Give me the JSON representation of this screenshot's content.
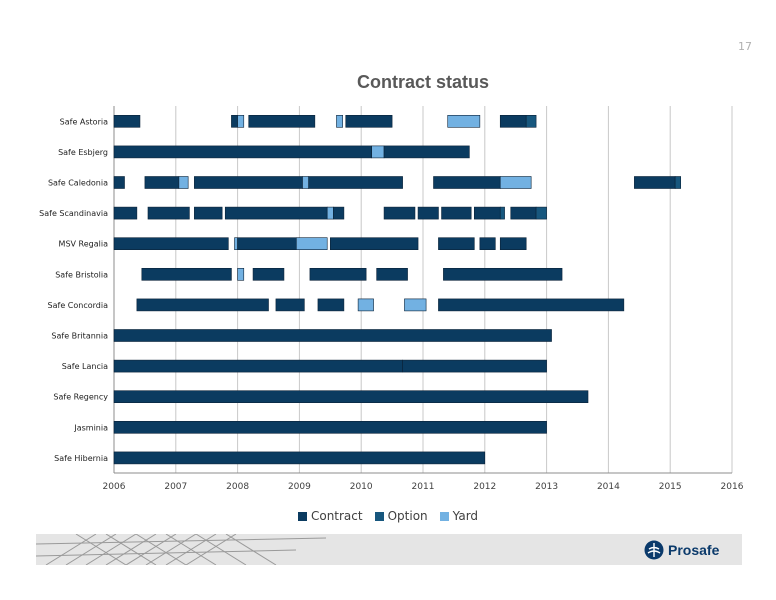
{
  "page": {
    "number": "17"
  },
  "brand": {
    "name": "Prosafe"
  },
  "chart_data": {
    "type": "bar",
    "orientation": "horizontal-timeline",
    "title": "Contract status",
    "xlabel": "",
    "ylabel": "",
    "xlim": [
      2006,
      2016
    ],
    "x_ticks": [
      "2006",
      "2007",
      "2008",
      "2009",
      "2010",
      "2011",
      "2012",
      "2013",
      "2014",
      "2015",
      "2016"
    ],
    "grid": true,
    "legend_position": "bottom",
    "colors": {
      "Contract": "#0b3b60",
      "Option": "#17577e",
      "Yard": "#72b1e2"
    },
    "legend": [
      "Contract",
      "Option",
      "Yard"
    ],
    "categories": [
      "Safe Astoria",
      "Safe Esbjerg",
      "Safe Caledonia",
      "Safe Scandinavia",
      "MSV Regalia",
      "Safe Bristolia",
      "Safe Concordia",
      "Safe Britannia",
      "Safe Lancia",
      "Safe Regency",
      "Jasminia",
      "Safe Hibernia"
    ],
    "rows": [
      {
        "name": "Safe Astoria",
        "segments": [
          {
            "start": 2006.0,
            "end": 2006.42,
            "type": "Contract"
          },
          {
            "start": 2007.9,
            "end": 2008.0,
            "type": "Contract"
          },
          {
            "start": 2008.0,
            "end": 2008.1,
            "type": "Yard"
          },
          {
            "start": 2008.18,
            "end": 2009.25,
            "type": "Contract"
          },
          {
            "start": 2009.6,
            "end": 2009.7,
            "type": "Yard"
          },
          {
            "start": 2009.75,
            "end": 2010.5,
            "type": "Contract"
          },
          {
            "start": 2011.4,
            "end": 2011.92,
            "type": "Yard"
          },
          {
            "start": 2012.25,
            "end": 2012.67,
            "type": "Contract"
          },
          {
            "start": 2012.67,
            "end": 2012.83,
            "type": "Option"
          }
        ]
      },
      {
        "name": "Safe Esbjerg",
        "segments": [
          {
            "start": 2006.0,
            "end": 2010.17,
            "type": "Contract"
          },
          {
            "start": 2010.17,
            "end": 2010.37,
            "type": "Yard"
          },
          {
            "start": 2010.37,
            "end": 2011.75,
            "type": "Contract"
          }
        ]
      },
      {
        "name": "Safe Caledonia",
        "segments": [
          {
            "start": 2006.0,
            "end": 2006.17,
            "type": "Contract"
          },
          {
            "start": 2006.5,
            "end": 2007.05,
            "type": "Contract"
          },
          {
            "start": 2007.05,
            "end": 2007.2,
            "type": "Yard"
          },
          {
            "start": 2007.3,
            "end": 2009.05,
            "type": "Contract"
          },
          {
            "start": 2009.05,
            "end": 2009.15,
            "type": "Yard"
          },
          {
            "start": 2009.15,
            "end": 2010.67,
            "type": "Contract"
          },
          {
            "start": 2011.17,
            "end": 2012.25,
            "type": "Contract"
          },
          {
            "start": 2012.25,
            "end": 2012.75,
            "type": "Yard"
          },
          {
            "start": 2014.42,
            "end": 2015.08,
            "type": "Contract"
          },
          {
            "start": 2015.08,
            "end": 2015.17,
            "type": "Option"
          }
        ]
      },
      {
        "name": "Safe Scandinavia",
        "segments": [
          {
            "start": 2006.0,
            "end": 2006.37,
            "type": "Contract"
          },
          {
            "start": 2006.55,
            "end": 2007.22,
            "type": "Contract"
          },
          {
            "start": 2007.3,
            "end": 2007.75,
            "type": "Contract"
          },
          {
            "start": 2007.8,
            "end": 2009.45,
            "type": "Contract"
          },
          {
            "start": 2009.45,
            "end": 2009.55,
            "type": "Yard"
          },
          {
            "start": 2009.55,
            "end": 2009.72,
            "type": "Contract"
          },
          {
            "start": 2010.37,
            "end": 2010.87,
            "type": "Contract"
          },
          {
            "start": 2010.92,
            "end": 2011.25,
            "type": "Contract"
          },
          {
            "start": 2011.3,
            "end": 2011.78,
            "type": "Contract"
          },
          {
            "start": 2011.83,
            "end": 2012.25,
            "type": "Contract"
          },
          {
            "start": 2012.25,
            "end": 2012.32,
            "type": "Option"
          },
          {
            "start": 2012.42,
            "end": 2012.83,
            "type": "Contract"
          },
          {
            "start": 2012.83,
            "end": 2013.0,
            "type": "Option"
          }
        ]
      },
      {
        "name": "MSV Regalia",
        "segments": [
          {
            "start": 2006.0,
            "end": 2007.85,
            "type": "Contract"
          },
          {
            "start": 2007.95,
            "end": 2008.0,
            "type": "Yard"
          },
          {
            "start": 2008.0,
            "end": 2008.95,
            "type": "Contract"
          },
          {
            "start": 2008.95,
            "end": 2009.45,
            "type": "Yard"
          },
          {
            "start": 2009.5,
            "end": 2010.92,
            "type": "Contract"
          },
          {
            "start": 2011.25,
            "end": 2011.83,
            "type": "Contract"
          },
          {
            "start": 2011.92,
            "end": 2012.17,
            "type": "Contract"
          },
          {
            "start": 2012.25,
            "end": 2012.67,
            "type": "Contract"
          }
        ]
      },
      {
        "name": "Safe Bristolia",
        "segments": [
          {
            "start": 2006.45,
            "end": 2007.9,
            "type": "Contract"
          },
          {
            "start": 2008.0,
            "end": 2008.1,
            "type": "Yard"
          },
          {
            "start": 2008.25,
            "end": 2008.75,
            "type": "Contract"
          },
          {
            "start": 2009.17,
            "end": 2010.08,
            "type": "Contract"
          },
          {
            "start": 2010.25,
            "end": 2010.75,
            "type": "Contract"
          },
          {
            "start": 2011.33,
            "end": 2013.25,
            "type": "Contract"
          }
        ]
      },
      {
        "name": "Safe Concordia",
        "segments": [
          {
            "start": 2006.37,
            "end": 2008.5,
            "type": "Contract"
          },
          {
            "start": 2008.62,
            "end": 2009.08,
            "type": "Contract"
          },
          {
            "start": 2009.3,
            "end": 2009.72,
            "type": "Contract"
          },
          {
            "start": 2009.95,
            "end": 2010.2,
            "type": "Yard"
          },
          {
            "start": 2010.7,
            "end": 2011.05,
            "type": "Yard"
          },
          {
            "start": 2011.25,
            "end": 2014.25,
            "type": "Contract"
          }
        ]
      },
      {
        "name": "Safe Britannia",
        "segments": [
          {
            "start": 2006.0,
            "end": 2013.08,
            "type": "Contract"
          }
        ]
      },
      {
        "name": "Safe Lancia",
        "segments": [
          {
            "start": 2006.0,
            "end": 2010.67,
            "type": "Contract"
          },
          {
            "start": 2010.67,
            "end": 2013.0,
            "type": "Contract"
          }
        ]
      },
      {
        "name": "Safe Regency",
        "segments": [
          {
            "start": 2006.0,
            "end": 2013.67,
            "type": "Contract"
          }
        ]
      },
      {
        "name": "Jasminia",
        "segments": [
          {
            "start": 2006.0,
            "end": 2013.0,
            "type": "Contract"
          }
        ]
      },
      {
        "name": "Safe Hibernia",
        "segments": [
          {
            "start": 2006.0,
            "end": 2012.0,
            "type": "Contract"
          }
        ]
      }
    ]
  }
}
